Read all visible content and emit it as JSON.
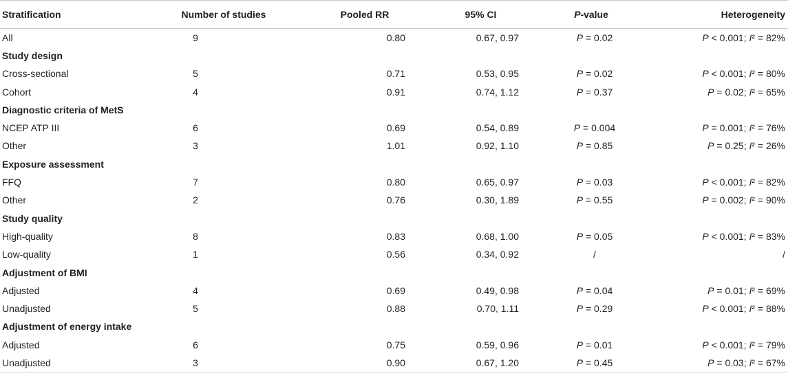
{
  "headers": {
    "stratification": "Stratification",
    "number_of_studies": "Number of studies",
    "pooled_rr": "Pooled RR",
    "ci": "95% CI",
    "p_value_italic": "P",
    "p_value_rest": "-value",
    "heterogeneity": "Heterogeneity"
  },
  "rows": [
    {
      "type": "data",
      "strat": "All",
      "n": "9",
      "rr": "0.80",
      "ci": "0.67, 0.97",
      "p": "P = 0.02",
      "het": "P < 0.001; I² = 82%"
    },
    {
      "type": "group",
      "label": "Study design"
    },
    {
      "type": "data",
      "strat": "Cross-sectional",
      "n": "5",
      "rr": "0.71",
      "ci": "0.53, 0.95",
      "p": "P = 0.02",
      "het": "P < 0.001; I² = 80%"
    },
    {
      "type": "data",
      "strat": "Cohort",
      "n": "4",
      "rr": "0.91",
      "ci": "0.74, 1.12",
      "p": "P = 0.37",
      "het": "P = 0.02; I² = 65%"
    },
    {
      "type": "group",
      "label": "Diagnostic criteria of MetS"
    },
    {
      "type": "data",
      "strat": "NCEP ATP III",
      "n": "6",
      "rr": "0.69",
      "ci": "0.54, 0.89",
      "p": "P = 0.004",
      "het": "P = 0.001; I² = 76%"
    },
    {
      "type": "data",
      "strat": "Other",
      "n": "3",
      "rr": "1.01",
      "ci": "0.92, 1.10",
      "p": "P = 0.85",
      "het": "P = 0.25; I² = 26%"
    },
    {
      "type": "group",
      "label": "Exposure assessment"
    },
    {
      "type": "data",
      "strat": "FFQ",
      "n": "7",
      "rr": "0.80",
      "ci": "0.65, 0.97",
      "p": "P = 0.03",
      "het": "P < 0.001; I² = 82%"
    },
    {
      "type": "data",
      "strat": "Other",
      "n": "2",
      "rr": "0.76",
      "ci": "0.30, 1.89",
      "p": "P = 0.55",
      "het": "P = 0.002; I² = 90%"
    },
    {
      "type": "group",
      "label": "Study quality"
    },
    {
      "type": "data",
      "strat": "High-quality",
      "n": "8",
      "rr": "0.83",
      "ci": "0.68, 1.00",
      "p": "P = 0.05",
      "het": "P < 0.001; I² = 83%"
    },
    {
      "type": "data",
      "strat": "Low-quality",
      "n": "1",
      "rr": "0.56",
      "ci": "0.34, 0.92",
      "p": "/",
      "het": "/"
    },
    {
      "type": "group",
      "label": "Adjustment of BMI"
    },
    {
      "type": "data",
      "strat": "Adjusted",
      "n": "4",
      "rr": "0.69",
      "ci": "0.49, 0.98",
      "p": "P = 0.04",
      "het": "P = 0.01; I² = 69%"
    },
    {
      "type": "data",
      "strat": "Unadjusted",
      "n": "5",
      "rr": "0.88",
      "ci": "0.70, 1.11",
      "p": "P = 0.29",
      "het": "P < 0.001; I² = 88%"
    },
    {
      "type": "group",
      "label": "Adjustment of energy intake"
    },
    {
      "type": "data",
      "strat": "Adjusted",
      "n": "6",
      "rr": "0.75",
      "ci": "0.59, 0.96",
      "p": "P = 0.01",
      "het": "P < 0.001; I² = 79%"
    },
    {
      "type": "data",
      "strat": "Unadjusted",
      "n": "3",
      "rr": "0.90",
      "ci": "0.67, 1.20",
      "p": "P = 0.45",
      "het": "P = 0.03; I² = 67%"
    }
  ]
}
